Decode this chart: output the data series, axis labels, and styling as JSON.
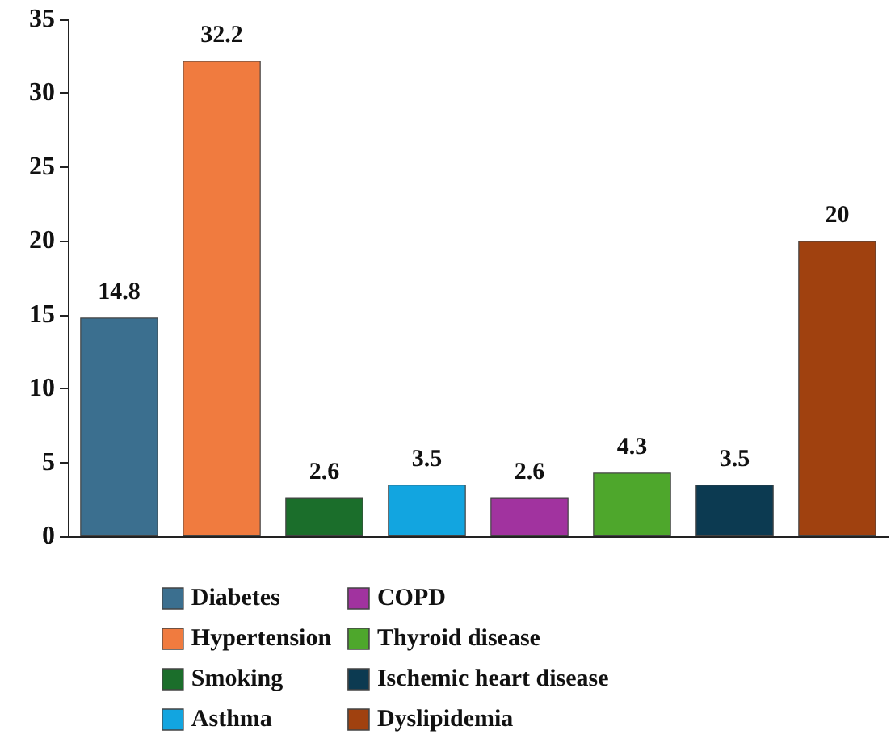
{
  "chart_data": {
    "type": "bar",
    "categories": [
      null,
      null,
      null,
      null,
      null,
      null,
      null,
      null
    ],
    "series": [
      {
        "name": "Diabetes",
        "color": "#3b6f8f",
        "values": [
          14.8,
          null,
          null,
          null,
          null,
          null,
          null,
          null
        ]
      },
      {
        "name": "Hypertension",
        "color": "#f07b3f",
        "values": [
          null,
          32.2,
          null,
          null,
          null,
          null,
          null,
          null
        ]
      },
      {
        "name": "Smoking",
        "color": "#1b6e2b",
        "values": [
          null,
          null,
          2.6,
          null,
          null,
          null,
          null,
          null
        ]
      },
      {
        "name": "Asthma",
        "color": "#12a5e0",
        "values": [
          null,
          null,
          null,
          3.5,
          null,
          null,
          null,
          null
        ]
      },
      {
        "name": "COPD",
        "color": "#a1339f",
        "values": [
          null,
          null,
          null,
          null,
          2.6,
          null,
          null,
          null
        ]
      },
      {
        "name": "Thyroid disease",
        "color": "#4ea72c",
        "values": [
          null,
          null,
          null,
          null,
          null,
          4.3,
          null,
          null
        ]
      },
      {
        "name": "Ischemic heart disease",
        "color": "#0c3a51",
        "values": [
          null,
          null,
          null,
          null,
          null,
          null,
          3.5,
          null
        ]
      },
      {
        "name": "Dyslipidemia",
        "color": "#a0410f",
        "values": [
          null,
          null,
          null,
          null,
          null,
          null,
          null,
          20
        ]
      }
    ],
    "ylim": [
      0,
      35
    ],
    "yticks": [
      0,
      5,
      10,
      15,
      20,
      25,
      30,
      35
    ],
    "data_labels": true,
    "legend": "bottom",
    "grid": false,
    "tick_labels": "y"
  }
}
